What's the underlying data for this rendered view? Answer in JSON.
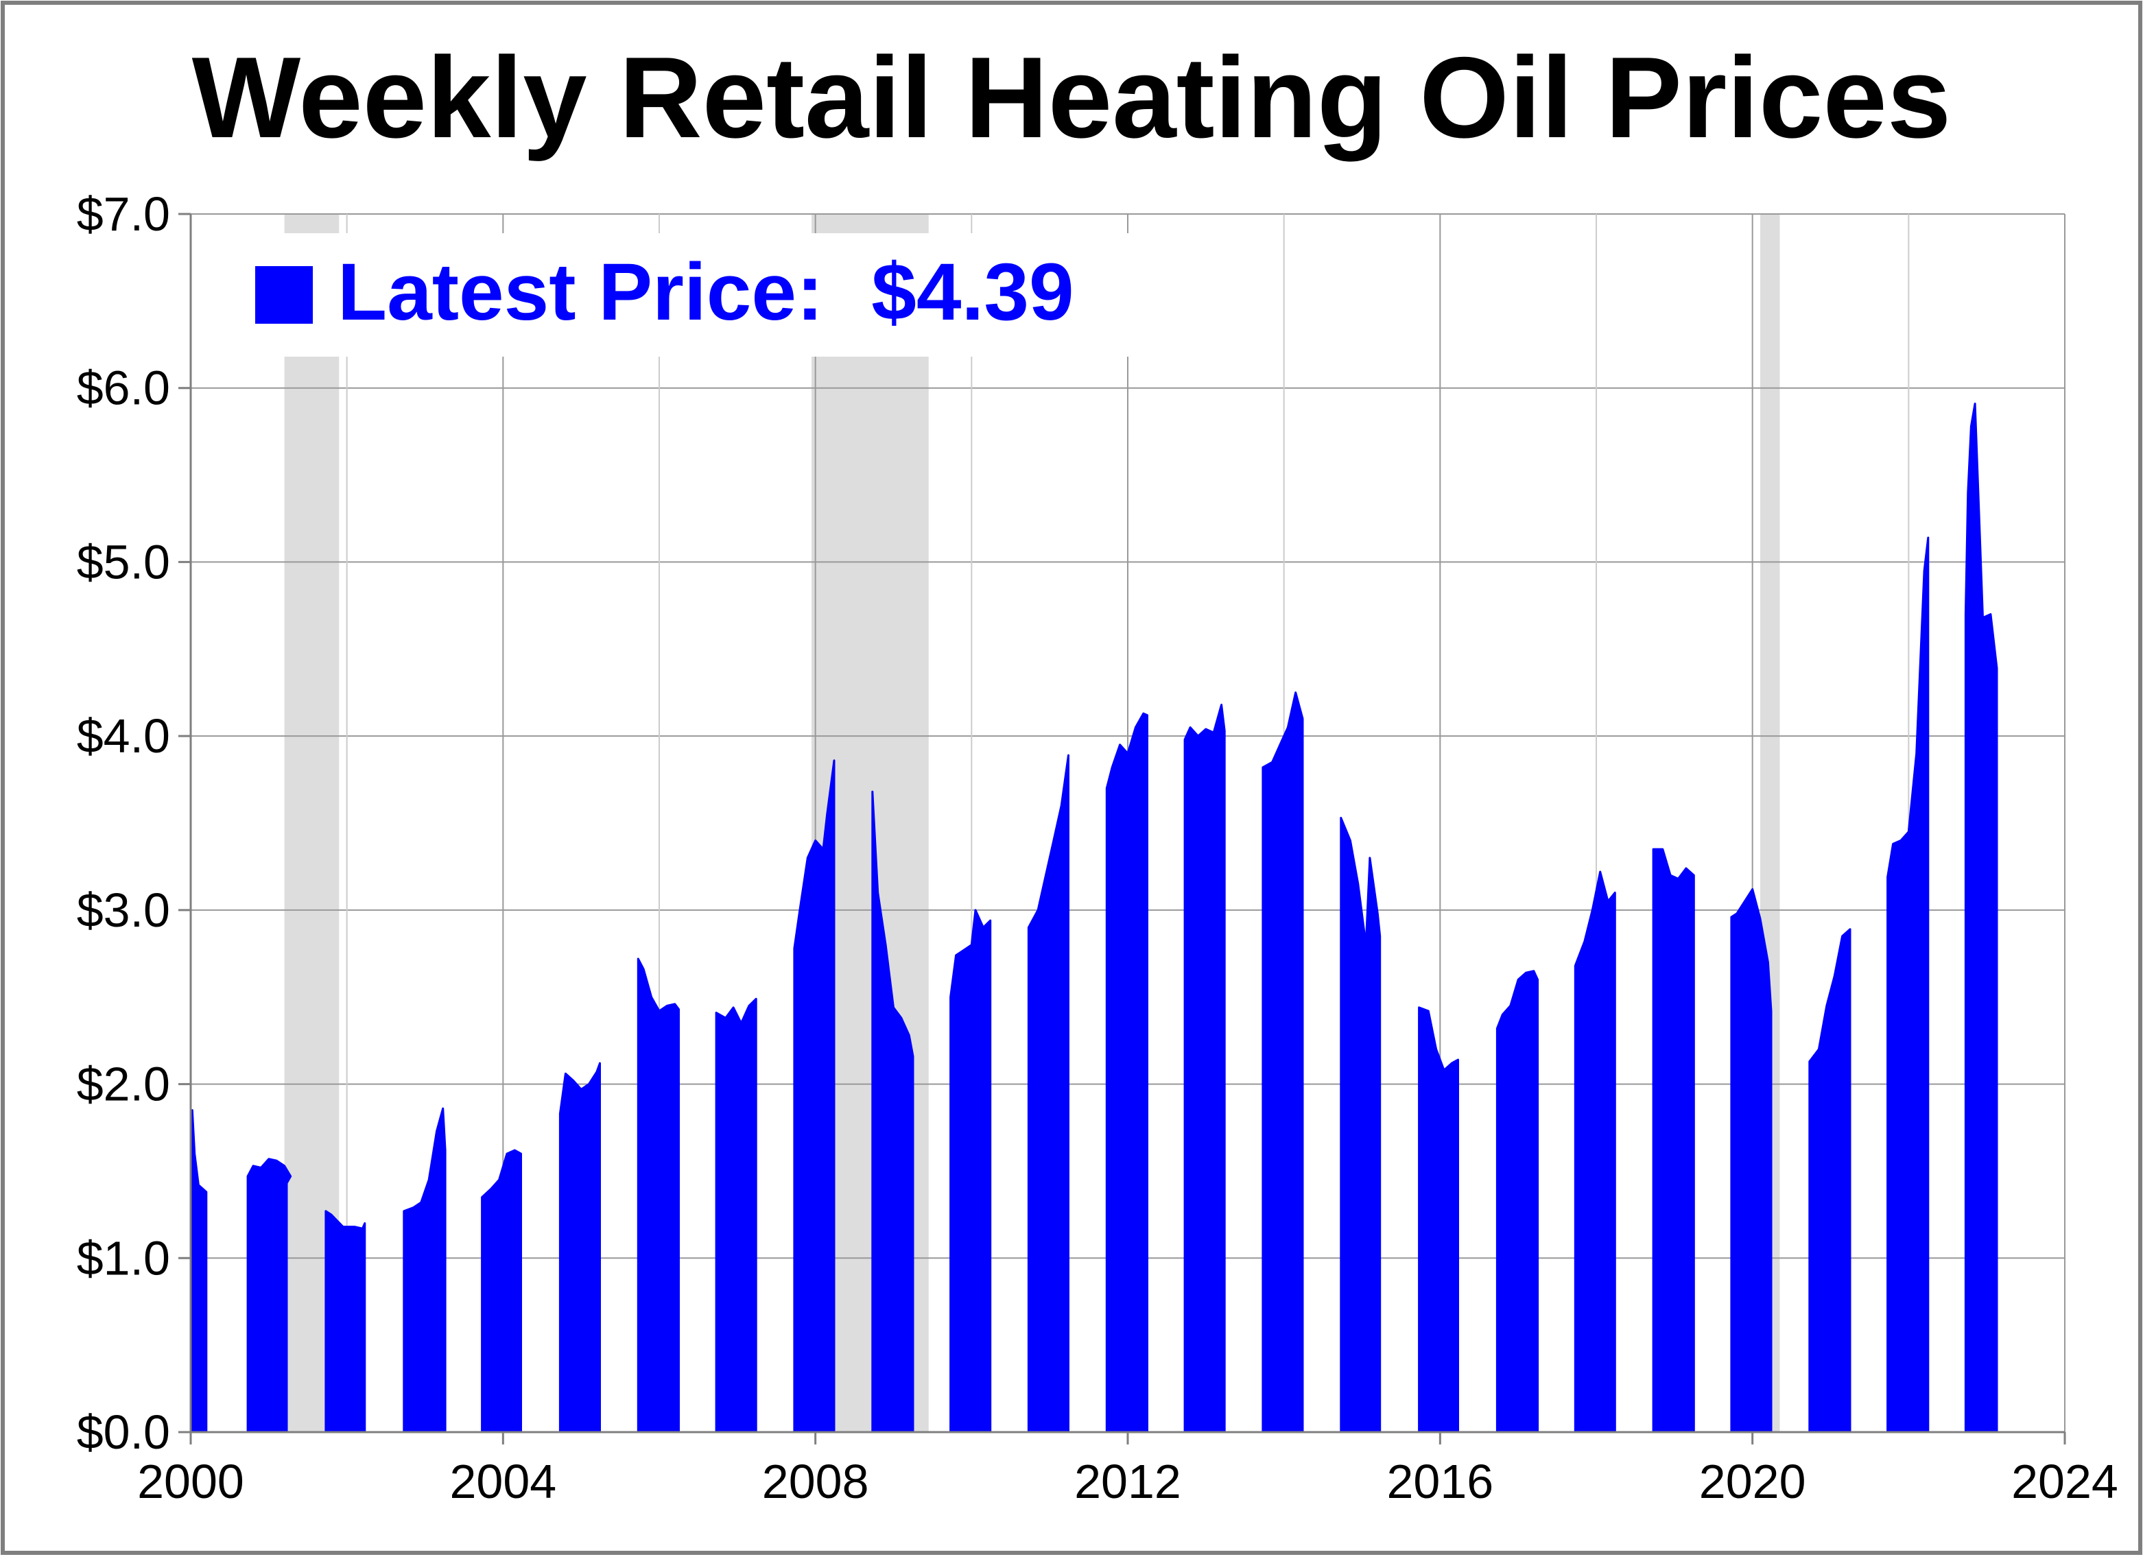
{
  "chart_data": {
    "type": "area",
    "title": "Weekly Retail Heating Oil Prices",
    "legend": {
      "label": "Latest Price:",
      "value": "$4.39",
      "placement": "top-left"
    },
    "xlabel": "",
    "ylabel": "",
    "xlim": [
      2000,
      2024
    ],
    "ylim": [
      0,
      7
    ],
    "x_ticks": [
      2000,
      2004,
      2008,
      2012,
      2016,
      2020,
      2024
    ],
    "x_tick_labels": [
      "2000",
      "2004",
      "2008",
      "2012",
      "2016",
      "2020",
      "2024"
    ],
    "x_minor_ticks": [
      2002,
      2006,
      2010,
      2014,
      2018,
      2022
    ],
    "y_ticks": [
      0,
      1,
      2,
      3,
      4,
      5,
      6,
      7
    ],
    "y_tick_labels": [
      "$0.0",
      "$1.0",
      "$2.0",
      "$3.0",
      "$4.0",
      "$5.0",
      "$6.0",
      "$7.0"
    ],
    "grid": true,
    "colors": {
      "series": "#0000FF",
      "recession": "#DDDDDD",
      "grid_major": "#999999",
      "grid_minor": "#CCCCCC",
      "legend_text": "#0000FF",
      "title": "#000000"
    },
    "recession_bands": [
      {
        "start": 2001.2,
        "end": 2001.9
      },
      {
        "start": 2007.95,
        "end": 2009.45
      },
      {
        "start": 2020.1,
        "end": 2020.35
      }
    ],
    "series": [
      {
        "seasons": [
          {
            "points": [
              [
                2000.02,
                1.85
              ],
              [
                2000.05,
                1.6
              ],
              [
                2000.1,
                1.42
              ],
              [
                2000.2,
                1.38
              ]
            ]
          },
          {
            "points": [
              [
                2000.73,
                1.47
              ],
              [
                2000.8,
                1.53
              ],
              [
                2000.9,
                1.52
              ],
              [
                2001.0,
                1.57
              ],
              [
                2001.1,
                1.56
              ],
              [
                2001.2,
                1.53
              ],
              [
                2001.28,
                1.47
              ],
              [
                2001.23,
                1.43
              ]
            ]
          },
          {
            "points": [
              [
                2001.73,
                1.27
              ],
              [
                2001.8,
                1.25
              ],
              [
                2001.95,
                1.18
              ],
              [
                2002.1,
                1.18
              ],
              [
                2002.2,
                1.17
              ],
              [
                2002.23,
                1.2
              ]
            ]
          },
          {
            "points": [
              [
                2002.73,
                1.27
              ],
              [
                2002.85,
                1.29
              ],
              [
                2002.95,
                1.32
              ],
              [
                2003.05,
                1.45
              ],
              [
                2003.15,
                1.73
              ],
              [
                2003.23,
                1.86
              ],
              [
                2003.26,
                1.62
              ]
            ]
          },
          {
            "points": [
              [
                2003.73,
                1.35
              ],
              [
                2003.85,
                1.4
              ],
              [
                2003.95,
                1.45
              ],
              [
                2004.05,
                1.6
              ],
              [
                2004.15,
                1.62
              ],
              [
                2004.23,
                1.6
              ]
            ]
          },
          {
            "points": [
              [
                2004.73,
                1.83
              ],
              [
                2004.8,
                2.06
              ],
              [
                2004.9,
                2.02
              ],
              [
                2005.0,
                1.97
              ],
              [
                2005.1,
                2.0
              ],
              [
                2005.2,
                2.07
              ],
              [
                2005.24,
                2.12
              ]
            ]
          },
          {
            "points": [
              [
                2005.73,
                2.72
              ],
              [
                2005.8,
                2.66
              ],
              [
                2005.9,
                2.5
              ],
              [
                2006.0,
                2.42
              ],
              [
                2006.1,
                2.45
              ],
              [
                2006.2,
                2.46
              ],
              [
                2006.25,
                2.43
              ]
            ]
          },
          {
            "points": [
              [
                2006.73,
                2.41
              ],
              [
                2006.85,
                2.38
              ],
              [
                2006.95,
                2.44
              ],
              [
                2007.05,
                2.35
              ],
              [
                2007.15,
                2.45
              ],
              [
                2007.24,
                2.49
              ]
            ]
          },
          {
            "points": [
              [
                2007.73,
                2.78
              ],
              [
                2007.8,
                3.0
              ],
              [
                2007.9,
                3.3
              ],
              [
                2008.0,
                3.4
              ],
              [
                2008.1,
                3.35
              ],
              [
                2008.15,
                3.55
              ],
              [
                2008.24,
                3.86
              ]
            ]
          },
          {
            "points": [
              [
                2008.73,
                3.68
              ],
              [
                2008.8,
                3.1
              ],
              [
                2008.9,
                2.8
              ],
              [
                2009.0,
                2.44
              ],
              [
                2009.1,
                2.38
              ],
              [
                2009.2,
                2.28
              ],
              [
                2009.25,
                2.16
              ]
            ]
          },
          {
            "points": [
              [
                2009.73,
                2.5
              ],
              [
                2009.8,
                2.74
              ],
              [
                2009.9,
                2.77
              ],
              [
                2010.0,
                2.8
              ],
              [
                2010.05,
                3.0
              ],
              [
                2010.15,
                2.9
              ],
              [
                2010.24,
                2.94
              ]
            ]
          },
          {
            "points": [
              [
                2010.73,
                2.9
              ],
              [
                2010.85,
                3.0
              ],
              [
                2010.95,
                3.2
              ],
              [
                2011.05,
                3.4
              ],
              [
                2011.15,
                3.6
              ],
              [
                2011.24,
                3.89
              ]
            ]
          },
          {
            "points": [
              [
                2011.73,
                3.7
              ],
              [
                2011.8,
                3.82
              ],
              [
                2011.9,
                3.95
              ],
              [
                2012.0,
                3.9
              ],
              [
                2012.1,
                4.05
              ],
              [
                2012.2,
                4.13
              ],
              [
                2012.25,
                4.12
              ]
            ]
          },
          {
            "points": [
              [
                2012.73,
                3.98
              ],
              [
                2012.8,
                4.05
              ],
              [
                2012.9,
                4.0
              ],
              [
                2013.0,
                4.04
              ],
              [
                2013.1,
                4.02
              ],
              [
                2013.2,
                4.18
              ],
              [
                2013.24,
                4.03
              ]
            ]
          },
          {
            "points": [
              [
                2013.73,
                3.82
              ],
              [
                2013.85,
                3.85
              ],
              [
                2013.95,
                3.95
              ],
              [
                2014.05,
                4.05
              ],
              [
                2014.15,
                4.25
              ],
              [
                2014.24,
                4.1
              ]
            ]
          },
          {
            "points": [
              [
                2014.73,
                3.53
              ],
              [
                2014.85,
                3.4
              ],
              [
                2014.95,
                3.15
              ],
              [
                2015.05,
                2.8
              ],
              [
                2015.1,
                3.3
              ],
              [
                2015.2,
                2.98
              ],
              [
                2015.23,
                2.85
              ]
            ]
          },
          {
            "points": [
              [
                2015.73,
                2.44
              ],
              [
                2015.85,
                2.42
              ],
              [
                2015.95,
                2.2
              ],
              [
                2016.05,
                2.08
              ],
              [
                2016.15,
                2.12
              ],
              [
                2016.23,
                2.14
              ]
            ]
          },
          {
            "points": [
              [
                2016.73,
                2.32
              ],
              [
                2016.8,
                2.4
              ],
              [
                2016.9,
                2.45
              ],
              [
                2017.0,
                2.6
              ],
              [
                2017.1,
                2.64
              ],
              [
                2017.2,
                2.65
              ],
              [
                2017.25,
                2.6
              ]
            ]
          },
          {
            "points": [
              [
                2017.73,
                2.68
              ],
              [
                2017.85,
                2.82
              ],
              [
                2017.95,
                3.0
              ],
              [
                2018.05,
                3.22
              ],
              [
                2018.15,
                3.05
              ],
              [
                2018.24,
                3.1
              ]
            ]
          },
          {
            "points": [
              [
                2018.73,
                3.35
              ],
              [
                2018.85,
                3.35
              ],
              [
                2018.95,
                3.2
              ],
              [
                2019.05,
                3.18
              ],
              [
                2019.15,
                3.24
              ],
              [
                2019.25,
                3.2
              ]
            ]
          },
          {
            "points": [
              [
                2019.73,
                2.96
              ],
              [
                2019.8,
                2.98
              ],
              [
                2019.9,
                3.05
              ],
              [
                2020.0,
                3.12
              ],
              [
                2020.1,
                2.95
              ],
              [
                2020.2,
                2.7
              ],
              [
                2020.24,
                2.42
              ]
            ]
          },
          {
            "points": [
              [
                2020.73,
                2.13
              ],
              [
                2020.85,
                2.2
              ],
              [
                2020.95,
                2.45
              ],
              [
                2021.05,
                2.62
              ],
              [
                2021.15,
                2.85
              ],
              [
                2021.25,
                2.89
              ]
            ]
          },
          {
            "points": [
              [
                2021.73,
                3.19
              ],
              [
                2021.8,
                3.38
              ],
              [
                2021.9,
                3.4
              ],
              [
                2022.0,
                3.45
              ],
              [
                2022.1,
                3.9
              ],
              [
                2022.2,
                4.95
              ],
              [
                2022.25,
                5.14
              ]
            ]
          },
          {
            "points": [
              [
                2022.73,
                4.7
              ],
              [
                2022.76,
                5.4
              ],
              [
                2022.8,
                5.78
              ],
              [
                2022.85,
                5.91
              ],
              [
                2022.9,
                5.3
              ],
              [
                2022.95,
                4.68
              ],
              [
                2023.05,
                4.7
              ],
              [
                2023.13,
                4.39
              ]
            ]
          }
        ]
      }
    ]
  }
}
